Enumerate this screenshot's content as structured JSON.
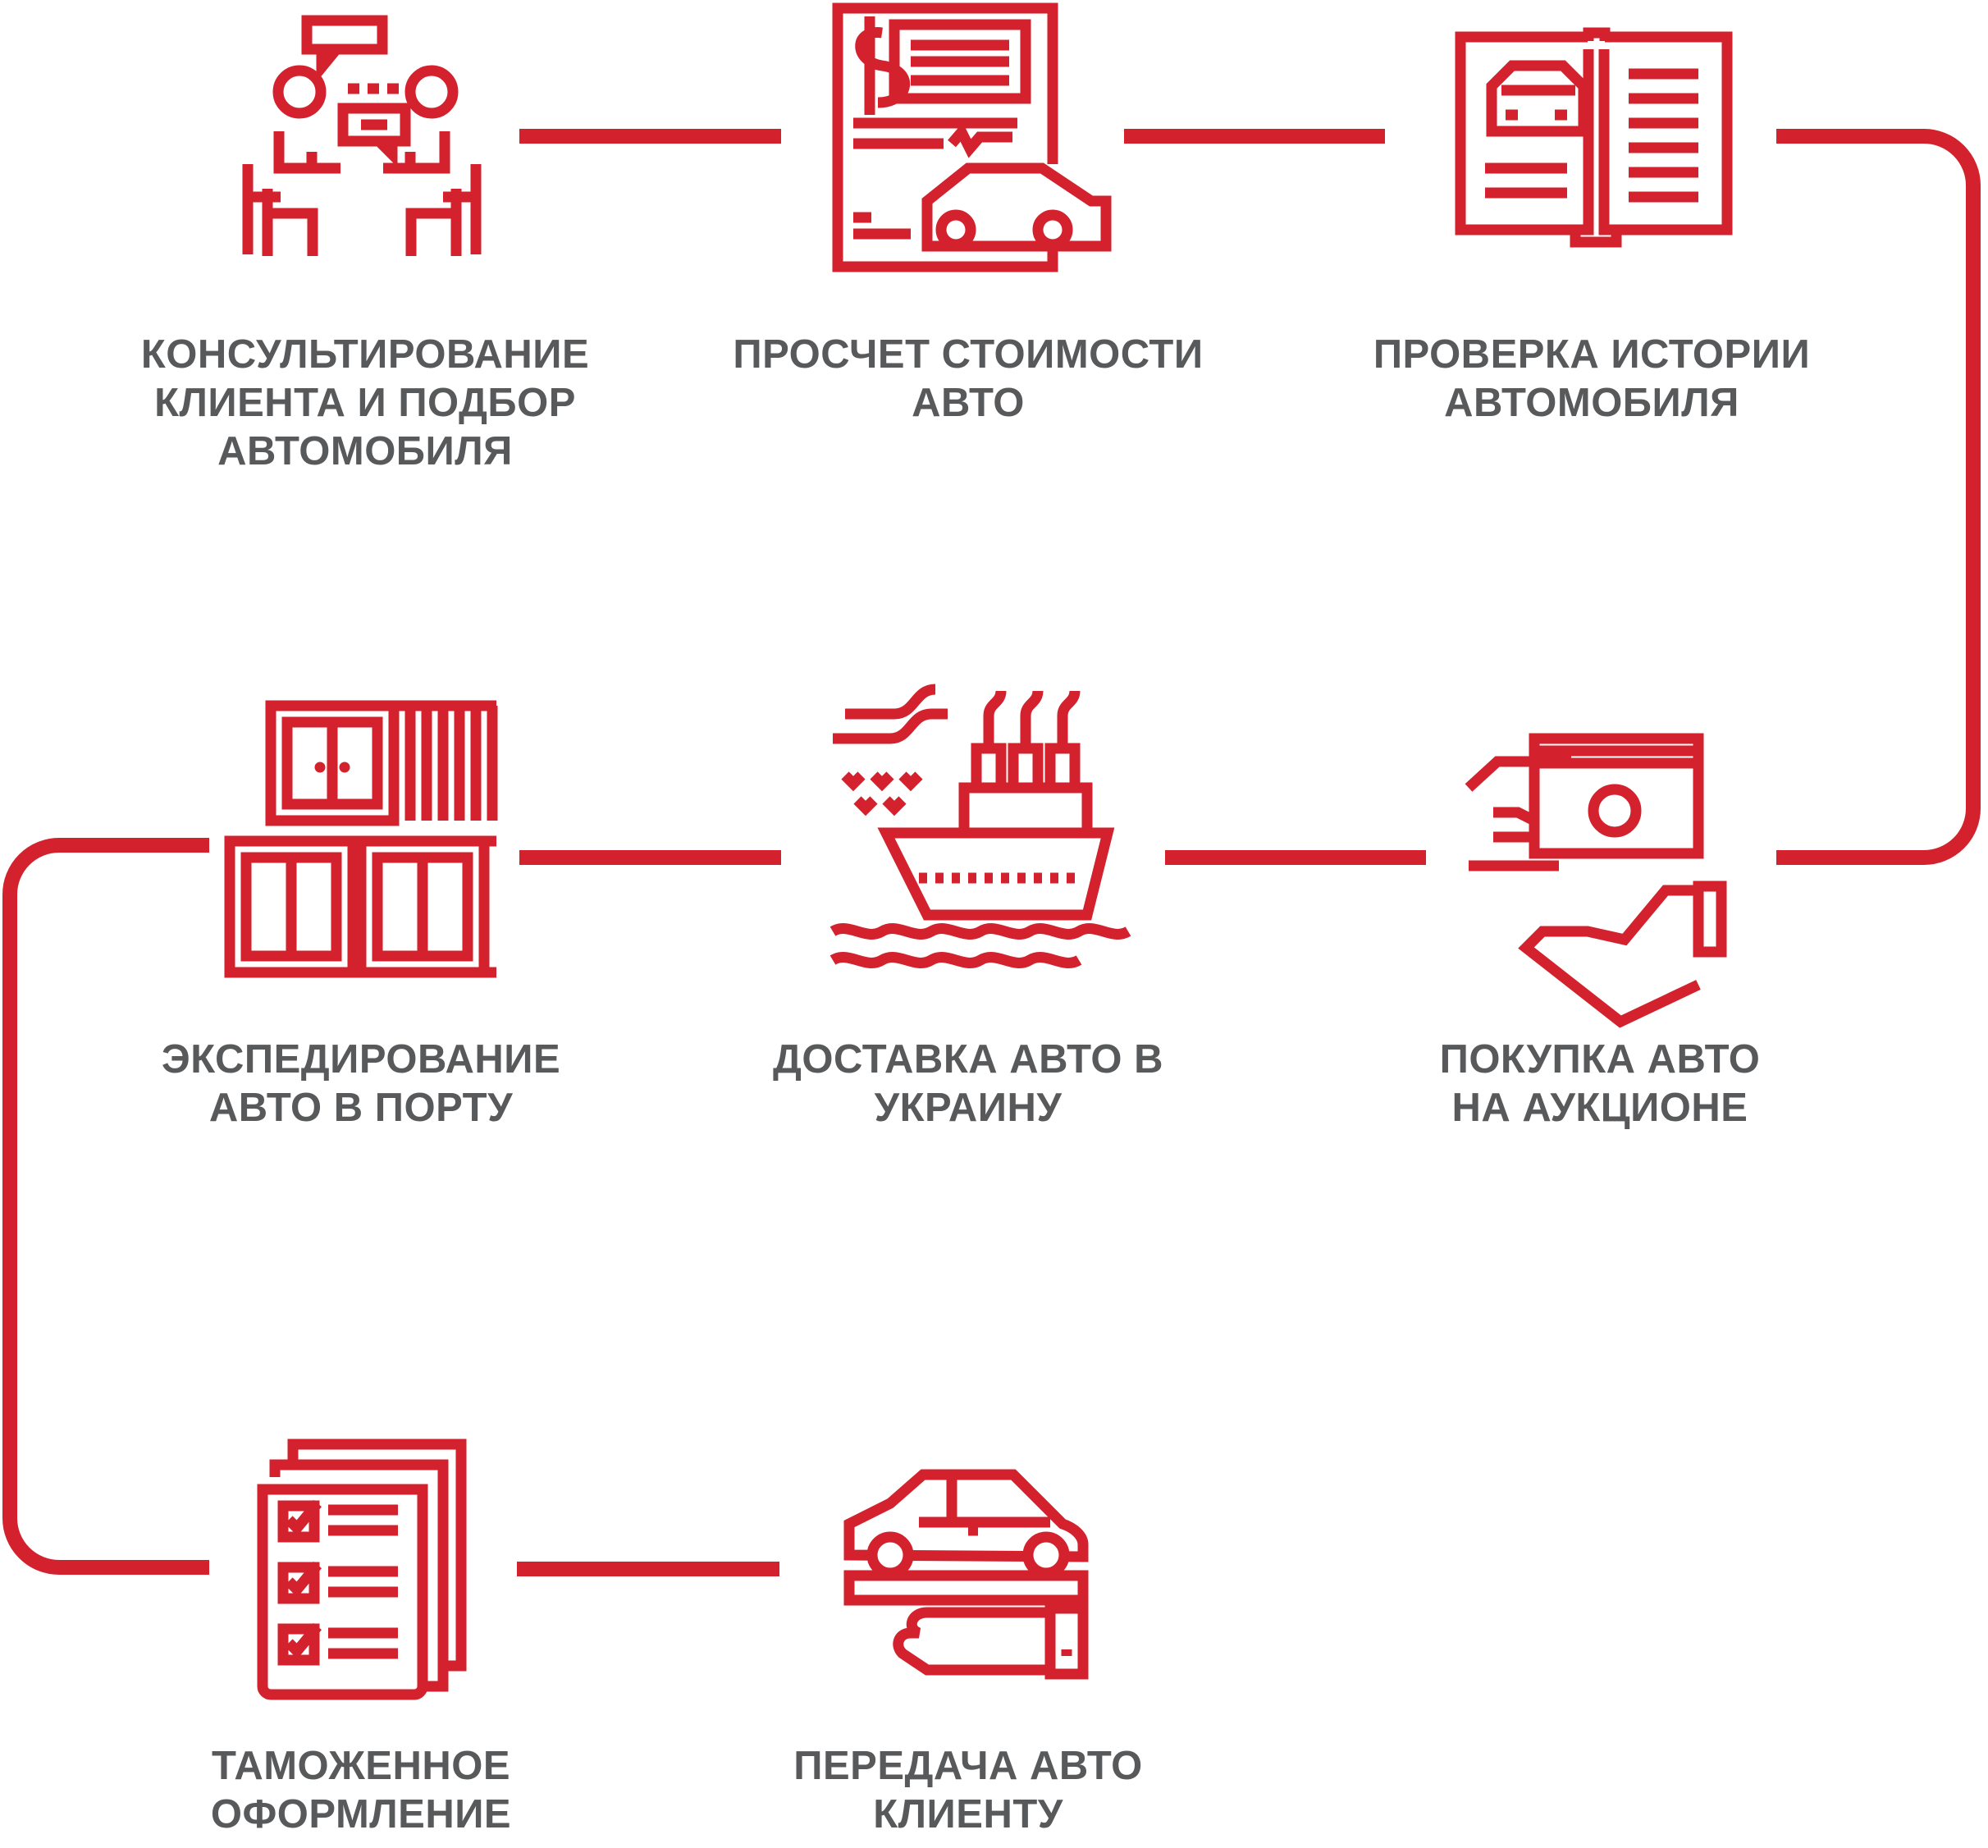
{
  "colors": {
    "accent": "#d3222e",
    "text": "#58595b",
    "background": "#ffffff"
  },
  "steps": [
    {
      "icon": "consultation-icon",
      "lines": [
        "КОНСУЛЬТИРОВАНИЕ",
        "КЛИЕНТА И  ПОДБОР",
        "АВТОМОБИЛЯ"
      ]
    },
    {
      "icon": "price-calculation-icon",
      "lines": [
        "ПРОСЧЕТ СТОИМОСТИ",
        "АВТО"
      ]
    },
    {
      "icon": "vehicle-history-book-icon",
      "lines": [
        "ПРОВЕРКА ИСТОРИИ",
        "АВТОМОБИЛЯ"
      ]
    },
    {
      "icon": "auction-purchase-icon",
      "lines": [
        "ПОКУПКА АВТО",
        "НА АУКЦИОНЕ"
      ]
    },
    {
      "icon": "cargo-ship-icon",
      "lines": [
        "ДОСТАВКА АВТО В",
        "УКРАИНУ"
      ]
    },
    {
      "icon": "port-containers-icon",
      "lines": [
        "ЭКСПЕДИРОВАНИЕ",
        "АВТО В ПОРТУ"
      ]
    },
    {
      "icon": "customs-checklist-icon",
      "lines": [
        "ТАМОЖЕННОЕ",
        "ОФОРМЛЕНИЕ"
      ]
    },
    {
      "icon": "car-handover-icon",
      "lines": [
        "ПЕРЕДАЧА АВТО",
        "КЛИЕНТУ"
      ]
    }
  ]
}
